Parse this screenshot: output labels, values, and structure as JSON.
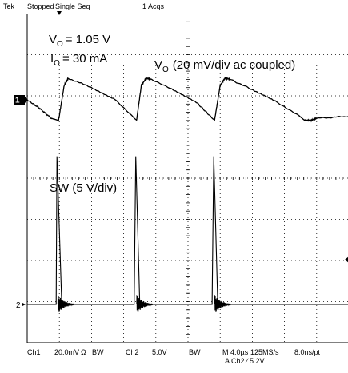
{
  "header": {
    "brand": "Tek",
    "status": "Stopped",
    "mode": "Single Seq",
    "acqs": "1 Acqs"
  },
  "annotations": {
    "vo_main": "V",
    "vo_sub": "O",
    "vo_value": "= 1.05 V",
    "io_main": "I",
    "io_sub": "O",
    "io_value": "= 30 mA",
    "ch1_main": "V",
    "ch1_sub": "O",
    "ch1_value": "(20 mV/div ac coupled)",
    "ch2_label": "SW (5 V/div)"
  },
  "markers": {
    "ch1": "1",
    "ch2": "2"
  },
  "footer": {
    "ch1_label": "Ch1",
    "ch1_scale": "20.0mV",
    "ch1_coupling": "Ω",
    "ch1_bw": "BW",
    "ch2_label": "Ch2",
    "ch2_scale": "5.0V",
    "ch2_bw": "BW",
    "timebase": "M 4.0µs",
    "sample_rate": "125MS/s",
    "sample_interval": "8.0ns/pt",
    "trigger": "A Ch2  ∕  5.2V"
  },
  "colors": {
    "trace": "#000000",
    "grid": "#000000",
    "background": "#ffffff"
  },
  "chart_data": {
    "type": "line",
    "time_per_div_us": 4.0,
    "divisions_x": 10,
    "divisions_y": 8,
    "series": [
      {
        "name": "Ch1",
        "t_us": [
          0,
          1.5,
          3.0,
          3.9,
          4.6,
          5.1,
          8,
          11,
          13.6,
          14.2,
          14.8,
          15.4,
          18,
          21,
          23.3,
          24,
          24.6,
          25.2,
          28,
          31,
          33.6,
          34.5,
          35.3,
          36,
          40
        ],
        "v_mv": [
          0,
          -4,
          -9,
          -10,
          7,
          10.5,
          6,
          0,
          -10,
          7,
          10.5,
          10,
          5,
          -1,
          -10,
          7,
          10.5,
          10,
          5,
          -1,
          -7,
          -10,
          -10,
          -9,
          -8
        ]
      },
      {
        "name": "Ch2",
        "t_us": [
          0,
          3.6,
          3.7,
          4.3,
          5.5,
          13.3,
          13.5,
          14.0,
          15.2,
          23.0,
          23.2,
          23.7,
          24.9,
          40
        ],
        "v_v": [
          0,
          0,
          18,
          0,
          0,
          0,
          18,
          0,
          0,
          0,
          18,
          0,
          0,
          0
        ]
      }
    ]
  }
}
